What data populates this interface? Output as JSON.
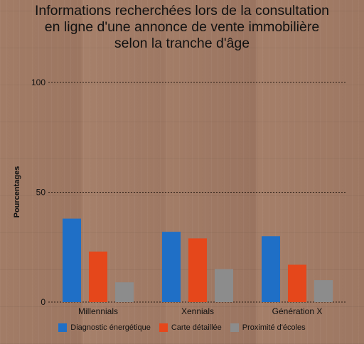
{
  "chart_data": {
    "type": "bar",
    "title_lines": [
      "Informations recherchées lors de la consultation",
      "en ligne d'une annonce de vente immobilière",
      "selon la tranche d'âge"
    ],
    "ylabel": "Pourcentages",
    "xlabel": "",
    "ylim": [
      0,
      100
    ],
    "yticks": [
      0,
      50,
      100
    ],
    "categories": [
      "Millennials",
      "Xennials",
      "Génération X"
    ],
    "series": [
      {
        "name": "Diagnostic énergétique",
        "color": "#1f6fc6",
        "values": [
          38,
          32,
          30
        ]
      },
      {
        "name": "Carte détaillée",
        "color": "#e5471b",
        "values": [
          23,
          29,
          17
        ]
      },
      {
        "name": "Proximité d'écoles",
        "color": "#8c8c8c",
        "values": [
          9,
          15,
          10
        ]
      }
    ],
    "grid": true,
    "legend_position": "bottom"
  }
}
